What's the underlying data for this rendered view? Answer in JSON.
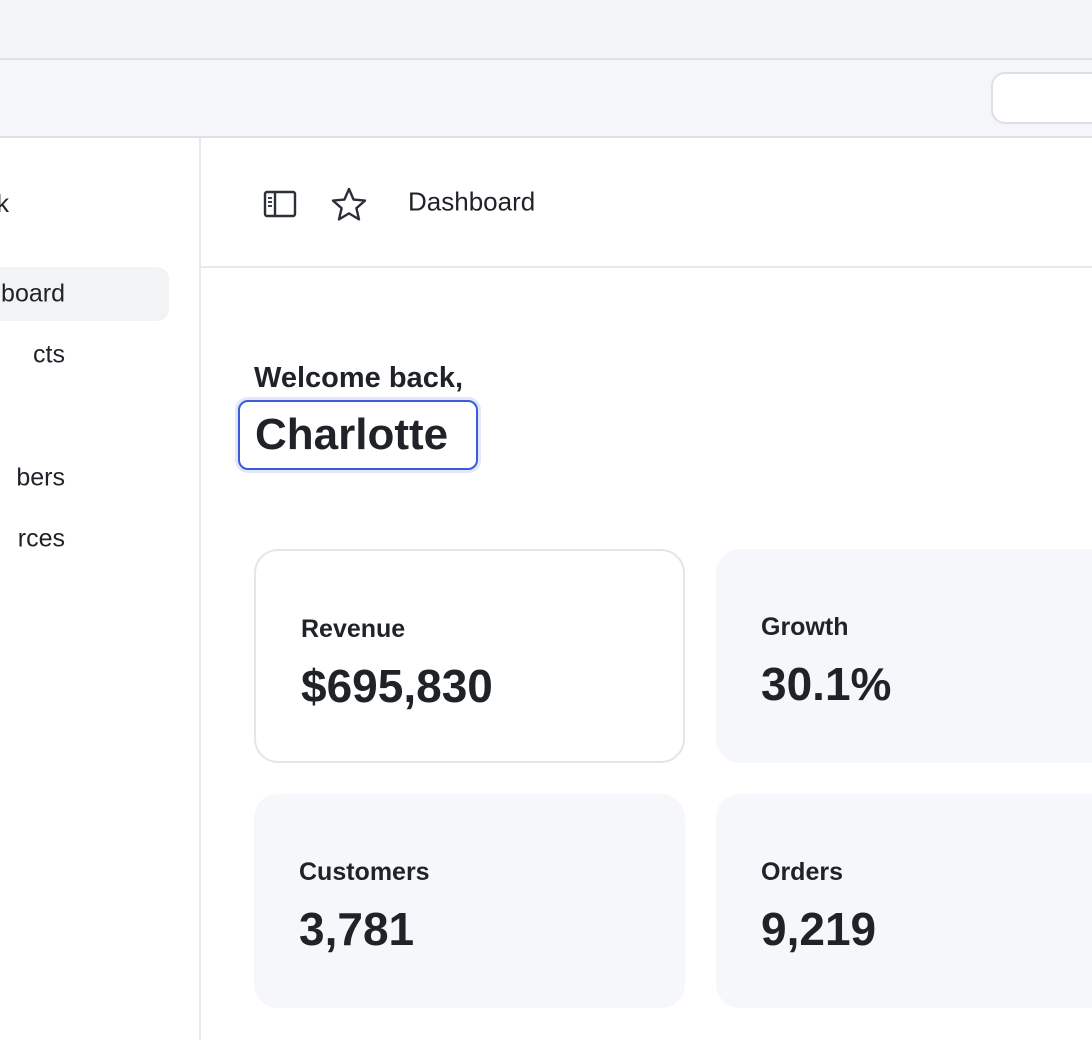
{
  "sidebar": {
    "brand": "k",
    "items": [
      {
        "label": "board",
        "active": true
      },
      {
        "label": "cts",
        "active": false
      },
      {
        "label": "bers",
        "active": false
      },
      {
        "label": "rces",
        "active": false
      }
    ]
  },
  "header": {
    "breadcrumb": "Dashboard",
    "icons": [
      "sidebar-toggle-icon",
      "star-icon"
    ]
  },
  "welcome": {
    "greeting": "Welcome back,",
    "name": "Charlotte"
  },
  "stats": [
    {
      "label": "Revenue",
      "value": "$695,830"
    },
    {
      "label": "Growth",
      "value": "30.1%"
    },
    {
      "label": "Customers",
      "value": "3,781"
    },
    {
      "label": "Orders",
      "value": "9,219"
    }
  ],
  "colors": {
    "accent": "#3b5bdb",
    "card_bg": "#f5f7fa",
    "active_nav_bg": "#f2f3f5"
  }
}
